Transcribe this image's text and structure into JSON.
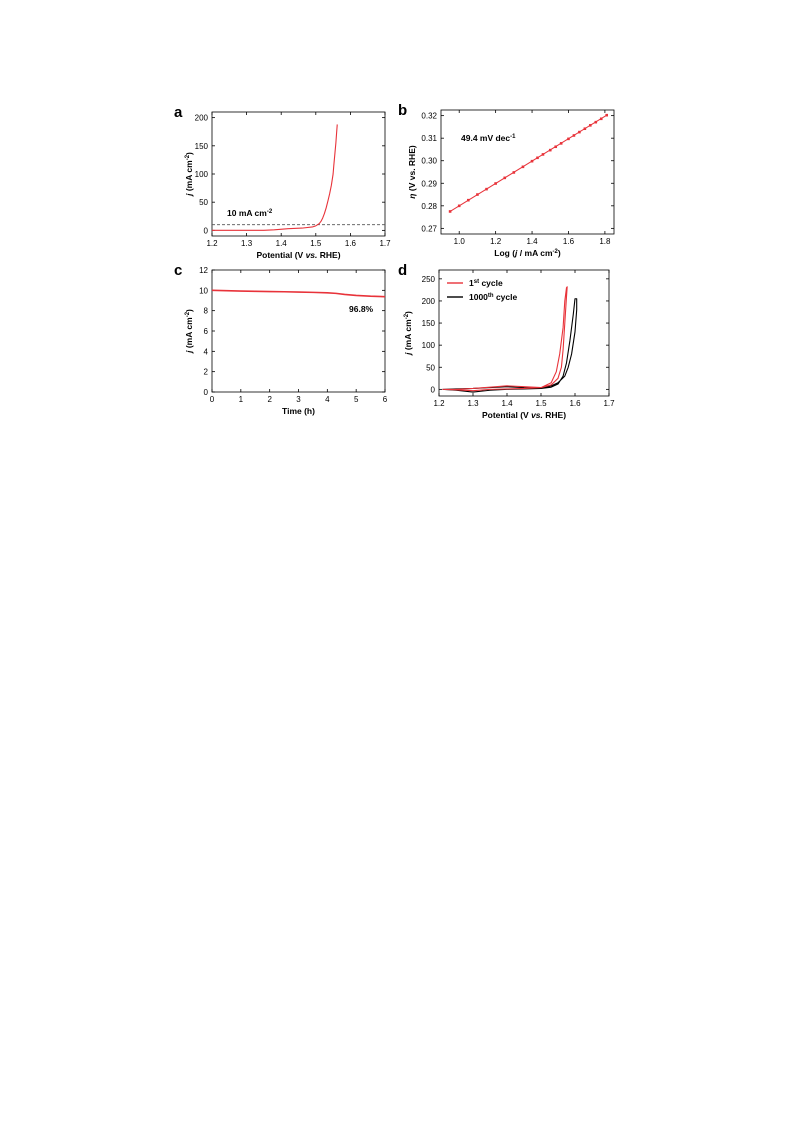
{
  "chart_data": [
    {
      "id": "a",
      "type": "line",
      "panel_label": "a",
      "xlabel_parts": [
        "Potential (V ",
        "vs.",
        " RHE)"
      ],
      "ylabel_parts": [
        "j",
        " (mA cm",
        "-2",
        ")"
      ],
      "xlim": [
        1.2,
        1.7
      ],
      "ylim": [
        -10,
        210
      ],
      "xticks": [
        1.2,
        1.3,
        1.4,
        1.5,
        1.6,
        1.7
      ],
      "xtick_labels": [
        "1.2",
        "1.3",
        "1.4",
        "1.5",
        "1.6",
        "1.7"
      ],
      "yticks": [
        0,
        50,
        100,
        150,
        200
      ],
      "ytick_labels": [
        "0",
        "50",
        "100",
        "150",
        "200"
      ],
      "hline": {
        "y": 10,
        "style": "dashed",
        "color": "#555555"
      },
      "annotation_parts": [
        "10 mA cm",
        "-2"
      ],
      "series": [
        {
          "color": "#e8333a",
          "x": [
            1.2,
            1.3,
            1.35,
            1.38,
            1.42,
            1.46,
            1.49,
            1.5,
            1.51,
            1.515,
            1.52,
            1.525,
            1.53,
            1.535,
            1.54,
            1.545,
            1.55,
            1.552,
            1.555,
            1.558,
            1.56,
            1.562
          ],
          "y": [
            0,
            0,
            0,
            1,
            3,
            4,
            6,
            8,
            12,
            16,
            22,
            30,
            40,
            52,
            65,
            80,
            100,
            115,
            135,
            155,
            172,
            188
          ]
        }
      ]
    },
    {
      "id": "b",
      "type": "line",
      "panel_label": "b",
      "xlabel_parts": [
        "Log (",
        "j",
        " / mA cm",
        "-2",
        ")"
      ],
      "ylabel_parts": [
        "η",
        " (V vs. RHE)"
      ],
      "xlim": [
        0.9,
        1.85
      ],
      "ylim": [
        0.2675,
        0.3225
      ],
      "xticks": [
        1.0,
        1.2,
        1.4,
        1.6,
        1.8
      ],
      "xtick_labels": [
        "1.0",
        "1.2",
        "1.4",
        "1.6",
        "1.8"
      ],
      "yticks": [
        0.27,
        0.28,
        0.29,
        0.3,
        0.31,
        0.32
      ],
      "ytick_labels": [
        "0.27",
        "0.28",
        "0.29",
        "0.30",
        "0.31",
        "0.32"
      ],
      "annotation_parts": [
        "49.4 mV dec",
        "-1"
      ],
      "fit": {
        "x": [
          0.95,
          1.81
        ],
        "y": [
          0.2775,
          0.3202
        ]
      },
      "series": [
        {
          "color": "#e8333a",
          "marker": "square",
          "x": [
            0.95,
            1.0,
            1.05,
            1.1,
            1.15,
            1.2,
            1.25,
            1.3,
            1.35,
            1.4,
            1.43,
            1.46,
            1.5,
            1.53,
            1.56,
            1.6,
            1.63,
            1.66,
            1.69,
            1.72,
            1.75,
            1.78,
            1.81
          ],
          "y": [
            0.2775,
            0.28,
            0.2825,
            0.285,
            0.2874,
            0.2899,
            0.2924,
            0.2948,
            0.2973,
            0.2998,
            0.3013,
            0.3028,
            0.3047,
            0.3062,
            0.3077,
            0.3097,
            0.3112,
            0.3127,
            0.3142,
            0.3157,
            0.3171,
            0.3186,
            0.3202
          ]
        }
      ]
    },
    {
      "id": "c",
      "type": "line",
      "panel_label": "c",
      "xlabel_parts": [
        "Time (h)"
      ],
      "ylabel_parts": [
        "j",
        " (mA cm",
        "-2",
        ")"
      ],
      "xlim": [
        0,
        6
      ],
      "ylim": [
        0,
        12
      ],
      "xticks": [
        0,
        1,
        2,
        3,
        4,
        5,
        6
      ],
      "xtick_labels": [
        "0",
        "1",
        "2",
        "3",
        "4",
        "5",
        "6"
      ],
      "yticks": [
        0,
        2,
        4,
        6,
        8,
        10,
        12
      ],
      "ytick_labels": [
        "0",
        "2",
        "4",
        "6",
        "8",
        "10",
        "12"
      ],
      "annotation_parts": [
        "96.8%"
      ],
      "series": [
        {
          "color": "#e8333a",
          "x": [
            0,
            0.5,
            1,
            1.5,
            2,
            2.5,
            3,
            3.5,
            4,
            4.3,
            4.6,
            5,
            5.5,
            6
          ],
          "y": [
            10.0,
            9.97,
            9.93,
            9.9,
            9.88,
            9.86,
            9.83,
            9.8,
            9.76,
            9.7,
            9.6,
            9.5,
            9.42,
            9.38
          ]
        }
      ]
    },
    {
      "id": "d",
      "type": "line",
      "panel_label": "d",
      "xlabel_parts": [
        "Potential (V ",
        "vs.",
        " RHE)"
      ],
      "ylabel_parts": [
        "j",
        " (mA cm",
        "-2",
        ")"
      ],
      "xlim": [
        1.2,
        1.7
      ],
      "ylim": [
        -15,
        270
      ],
      "xticks": [
        1.2,
        1.3,
        1.4,
        1.5,
        1.6,
        1.7
      ],
      "xtick_labels": [
        "1.2",
        "1.3",
        "1.4",
        "1.5",
        "1.6",
        "1.7"
      ],
      "yticks": [
        0,
        50,
        100,
        150,
        200,
        250
      ],
      "ytick_labels": [
        "0",
        "50",
        "100",
        "150",
        "200",
        "250"
      ],
      "legend": {
        "position": "top-left",
        "entries": [
          {
            "parts": [
              "1",
              "st",
              " cycle"
            ],
            "color": "#e8333a"
          },
          {
            "parts": [
              "1000",
              "th",
              " cycle"
            ],
            "color": "#000000"
          }
        ]
      },
      "series": [
        {
          "color": "#000000",
          "x": [
            1.21,
            1.25,
            1.3,
            1.35,
            1.4,
            1.45,
            1.5,
            1.53,
            1.55,
            1.57,
            1.58,
            1.59,
            1.6,
            1.605,
            1.605,
            1.6,
            1.595,
            1.585,
            1.575,
            1.565,
            1.55,
            1.53,
            1.5,
            1.45,
            1.4,
            1.35,
            1.3,
            1.25,
            1.21
          ],
          "y": [
            0,
            1,
            2,
            4,
            6,
            4,
            3,
            8,
            15,
            30,
            50,
            80,
            130,
            180,
            205,
            205,
            170,
            110,
            60,
            30,
            12,
            5,
            2,
            1,
            0,
            -2,
            -6,
            -2,
            0
          ]
        },
        {
          "color": "#e8333a",
          "x": [
            1.21,
            1.25,
            1.3,
            1.35,
            1.4,
            1.45,
            1.5,
            1.53,
            1.55,
            1.56,
            1.565,
            1.57,
            1.575,
            1.577,
            1.575,
            1.57,
            1.565,
            1.555,
            1.545,
            1.53,
            1.5,
            1.45,
            1.4,
            1.35,
            1.3,
            1.25,
            1.21
          ],
          "y": [
            0,
            0,
            2,
            5,
            8,
            6,
            4,
            10,
            25,
            50,
            90,
            150,
            210,
            232,
            230,
            200,
            140,
            80,
            40,
            15,
            4,
            2,
            1,
            0,
            -3,
            -1,
            0
          ]
        }
      ]
    }
  ]
}
